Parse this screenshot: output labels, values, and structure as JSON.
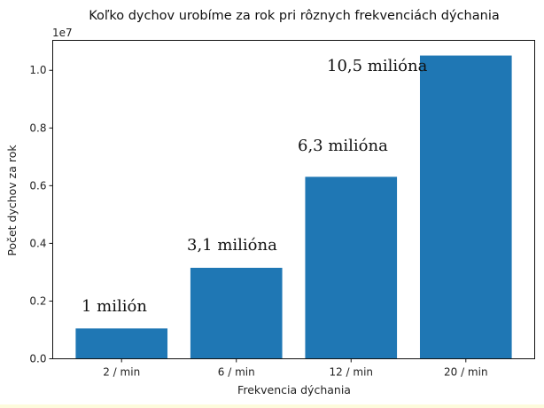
{
  "chart_data": {
    "type": "bar",
    "title": "Koľko dychov urobíme za rok pri rôznych frekvenciách dýchania",
    "xlabel": "Frekvencia dýchania",
    "ylabel": "Počet dychov za rok",
    "y_offset_label": "1e7",
    "categories": [
      "2 / min",
      "6 / min",
      "12 / min",
      "20 / min"
    ],
    "values": [
      1051200,
      3153600,
      6307200,
      10512000
    ],
    "ylim": [
      0,
      11037600
    ],
    "yticks": [
      0,
      2000000,
      4000000,
      6000000,
      8000000,
      10000000
    ],
    "ytick_labels": [
      "0.0",
      "0.2",
      "0.4",
      "0.6",
      "0.8",
      "1.0"
    ],
    "annotations": [
      "1 milión",
      "3,1 milióna",
      "6,3 milióna",
      "10,5 milióna"
    ],
    "bar_color": "#1f77b4",
    "grid": false
  }
}
